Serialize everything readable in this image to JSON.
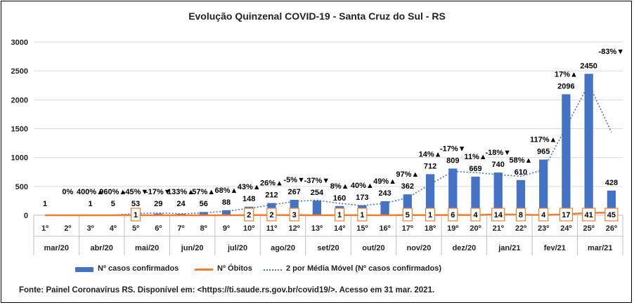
{
  "title": "Evolução Quinzenal COVID-19 - Santa Cruz do Sul - RS",
  "legend": {
    "cases": "Nº casos confirmados",
    "deaths": "Nº Óbitos",
    "moving_avg": "2 por Média Móvel (Nº casos confirmados)"
  },
  "source": "Fonte: Painel Coronavírus RS. Disponível em: <https://ti.saude.rs.gov.br/covid19/>. Acesso em 31 mar. 2021.",
  "colors": {
    "bars": "#4472C4",
    "deaths": "#ED7D31",
    "moving_avg": "#4472C4",
    "grid": "#D9D9D9"
  },
  "chart_data": {
    "type": "bar",
    "ylim": [
      0,
      3000
    ],
    "yticks": [
      "0",
      "500",
      "1000",
      "1500",
      "2000",
      "2500",
      "3000"
    ],
    "grid": true,
    "legend_position": "bottom",
    "categories": [
      "1º",
      "2º",
      "3º",
      "4º",
      "5º",
      "6º",
      "7º",
      "8º",
      "9º",
      "10º",
      "11º",
      "12º",
      "13º",
      "14º",
      "15º",
      "16º",
      "17º",
      "18º",
      "19º",
      "20º",
      "21º",
      "22º",
      "23º",
      "24º",
      "25º",
      "26º"
    ],
    "months": [
      "mar/20",
      "abr/20",
      "mai/20",
      "jun/20",
      "jul/20",
      "ago/20",
      "set/20",
      "out/20",
      "nov/20",
      "dez/20",
      "jan/21",
      "fev/21",
      "mar/21"
    ],
    "cases": [
      1,
      0,
      1,
      5,
      53,
      29,
      24,
      56,
      88,
      148,
      212,
      267,
      254,
      160,
      173,
      243,
      362,
      712,
      809,
      669,
      740,
      610,
      965,
      2096,
      2450,
      428
    ],
    "case_labels": [
      "1",
      "",
      "1",
      "5",
      "53",
      "29",
      "24",
      "56",
      "88",
      "148",
      "212",
      "267",
      "254",
      "160",
      "173",
      "243",
      "362",
      "712",
      "809",
      "669",
      "740",
      "610",
      "965",
      "2096",
      "2450",
      "428"
    ],
    "pct_labels": [
      "",
      "0%",
      "400%▲",
      "960%▲",
      "-45%▼",
      "-17%▼",
      "133%▲",
      "57%▲",
      "68%▲",
      "43%▲",
      "26%▲",
      "-5%▼",
      "-37%▼",
      "8%▲",
      "40%▲",
      "49%▲",
      "97%▲",
      "14%▲",
      "-17%▼",
      "11%▲",
      "-18%▼",
      "58%▲",
      "117%▲",
      "17%▲",
      "",
      "-83%▼"
    ],
    "deaths": [
      0,
      0,
      0,
      0,
      1,
      0,
      0,
      0,
      0,
      2,
      2,
      3,
      0,
      1,
      1,
      0,
      5,
      1,
      6,
      4,
      14,
      8,
      4,
      17,
      41,
      45
    ],
    "death_labels": [
      "",
      "",
      "",
      "",
      "1",
      "",
      "",
      "",
      "",
      "2",
      "2",
      "3",
      "",
      "1",
      "1",
      "",
      "5",
      "1",
      "6",
      "4",
      "14",
      "8",
      "4",
      "17",
      "41",
      "45"
    ],
    "moving_avg": [
      null,
      0.5,
      0.5,
      3,
      29,
      41,
      26.5,
      40,
      72,
      118,
      180,
      239.5,
      260.5,
      207,
      166.5,
      208,
      302.5,
      537,
      760.5,
      739,
      704.5,
      675,
      787.5,
      1530.5,
      2273,
      1439
    ]
  }
}
